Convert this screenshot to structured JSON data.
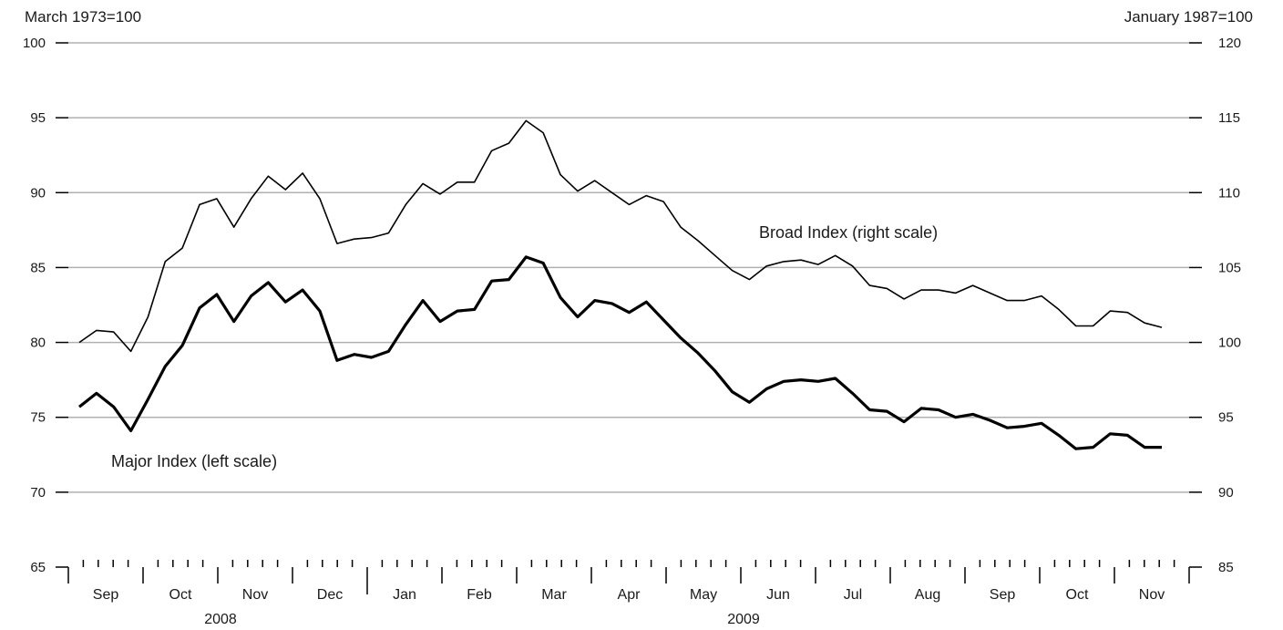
{
  "chart_data": {
    "type": "line",
    "left_axis_title": "March 1973=100",
    "right_axis_title": "January 1987=100",
    "left_ylim": [
      65,
      100
    ],
    "right_ylim": [
      85,
      120
    ],
    "left_ticks": [
      65,
      70,
      75,
      80,
      85,
      90,
      95,
      100
    ],
    "right_ticks": [
      85,
      90,
      95,
      100,
      105,
      110,
      115,
      120
    ],
    "grid": true,
    "months": [
      "Sep",
      "Oct",
      "Nov",
      "Dec",
      "Jan",
      "Feb",
      "Mar",
      "Apr",
      "May",
      "Jun",
      "Jul",
      "Aug",
      "Sep",
      "Oct",
      "Nov"
    ],
    "years": [
      {
        "label": "2008",
        "under_month_index": 2
      },
      {
        "label": "2009",
        "under_month_index": 9
      }
    ],
    "series": [
      {
        "name": "Major Index (left scale)",
        "axis": "left",
        "values": [
          75.7,
          76.6,
          75.7,
          74.1,
          76.2,
          78.4,
          79.8,
          82.3,
          83.2,
          81.4,
          83.1,
          84.0,
          82.7,
          83.5,
          82.1,
          78.8,
          79.2,
          79.0,
          79.4,
          81.2,
          82.8,
          81.4,
          82.1,
          82.2,
          84.1,
          84.2,
          85.7,
          85.3,
          83.0,
          81.7,
          82.8,
          82.6,
          82.0,
          82.7,
          81.5,
          80.3,
          79.3,
          78.1,
          76.7,
          76.0,
          76.9,
          77.4,
          77.5,
          77.4,
          77.6,
          76.6,
          75.5,
          75.4,
          74.7,
          75.6,
          75.5,
          75.0,
          75.2,
          74.8,
          74.3,
          74.4,
          74.6,
          73.8,
          72.9,
          73.0,
          73.9,
          73.8,
          73.0,
          73.0
        ],
        "color": "#000000"
      },
      {
        "name": "Broad Index (right scale)",
        "axis": "right",
        "values": [
          100.0,
          100.8,
          100.7,
          99.4,
          101.7,
          105.4,
          106.3,
          109.2,
          109.6,
          107.7,
          109.6,
          111.1,
          110.2,
          111.3,
          109.6,
          106.6,
          106.9,
          107.0,
          107.3,
          109.2,
          110.6,
          109.9,
          110.7,
          110.7,
          112.8,
          113.3,
          114.8,
          114.0,
          111.2,
          110.1,
          110.8,
          110.0,
          109.2,
          109.8,
          109.4,
          107.7,
          106.8,
          105.8,
          104.8,
          104.2,
          105.1,
          105.4,
          105.5,
          105.2,
          105.8,
          105.1,
          103.8,
          103.6,
          102.9,
          103.5,
          103.5,
          103.3,
          103.8,
          103.3,
          102.8,
          102.8,
          103.1,
          102.2,
          101.1,
          101.1,
          102.1,
          102.0,
          101.3,
          101.0
        ],
        "color": "#000000"
      }
    ]
  }
}
